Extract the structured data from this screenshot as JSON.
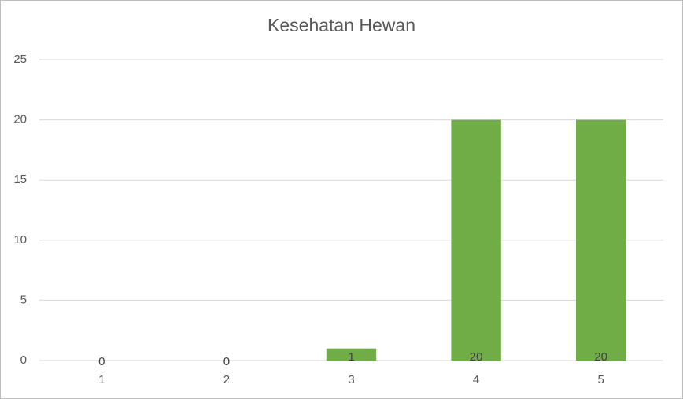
{
  "chart_data": {
    "type": "bar",
    "title": "Kesehatan Hewan",
    "categories": [
      "1",
      "2",
      "3",
      "4",
      "5"
    ],
    "values": [
      0,
      0,
      1,
      20,
      20
    ],
    "color": "#70ad47",
    "ylim": [
      0,
      25
    ],
    "yticks": [
      0,
      5,
      10,
      15,
      20,
      25
    ],
    "grid": true
  }
}
